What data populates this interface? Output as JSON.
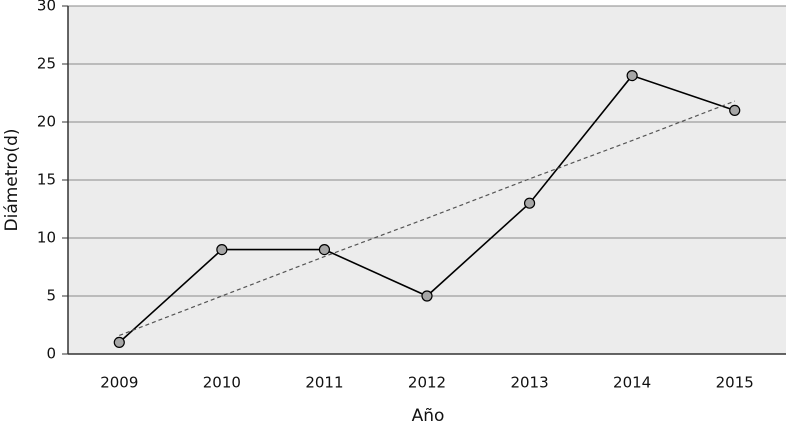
{
  "chart_data": {
    "type": "line",
    "x_label": "Año",
    "y_label": "Diámetro(d)",
    "categories": [
      "2009",
      "2010",
      "2011",
      "2012",
      "2013",
      "2014",
      "2015"
    ],
    "series": [
      {
        "color": "#000000",
        "values": [
          1,
          9,
          9,
          5,
          13,
          24,
          21
        ],
        "markers": true
      },
      {
        "color": "#555555",
        "values": [
          1.6,
          5.0,
          8.4,
          11.7,
          15.1,
          18.4,
          21.8
        ],
        "dashed": true
      }
    ],
    "ylim": [
      0,
      30
    ],
    "yticks": [
      0,
      5,
      10,
      15,
      20,
      25,
      30
    ],
    "grid": true
  }
}
